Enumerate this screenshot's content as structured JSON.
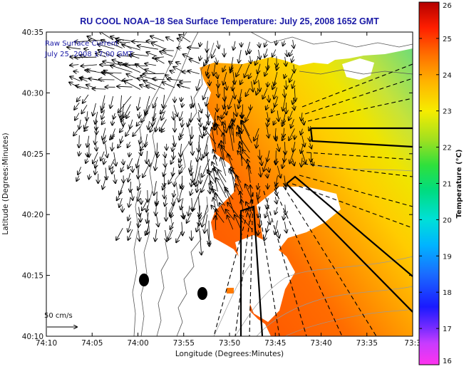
{
  "chart_data": {
    "type": "heatmap",
    "title": "RU COOL  NOAA−18  Sea Surface Temperature:  July 25, 2008 1652 GMT",
    "xlabel": "Longitude (Degrees:Minutes)",
    "ylabel": "Latitude (Degrees:Minutes)",
    "x_ticks": [
      "74:10",
      "74:05",
      "74:00",
      "73:55",
      "73:50",
      "73:45",
      "73:40",
      "73:35",
      "73:3"
    ],
    "y_ticks": [
      "40:10",
      "40:15",
      "40:20",
      "40:25",
      "40:30",
      "40:35"
    ],
    "xlim_minutes_west_of_74": [
      10,
      -30
    ],
    "ylim_minutes_north_of_40": [
      10,
      35
    ],
    "annotation_line1": "Raw Surface Current",
    "annotation_line2": "July 25, 2008 17:00 GMT",
    "scale_label": "50 cm/s",
    "colorbar": {
      "label": "Temperature (°C)",
      "min": 16,
      "max": 26,
      "ticks": [
        "16",
        "17",
        "18",
        "19",
        "20",
        "21",
        "22",
        "23",
        "24",
        "25",
        "26"
      ]
    },
    "colors": {
      "title": "#1a1aa6",
      "annotation": "#1a1aa6",
      "warm": "#ff5a00",
      "mid": "#ffa800",
      "cool": "#c8e23c",
      "cold": "#7edc6a"
    }
  }
}
